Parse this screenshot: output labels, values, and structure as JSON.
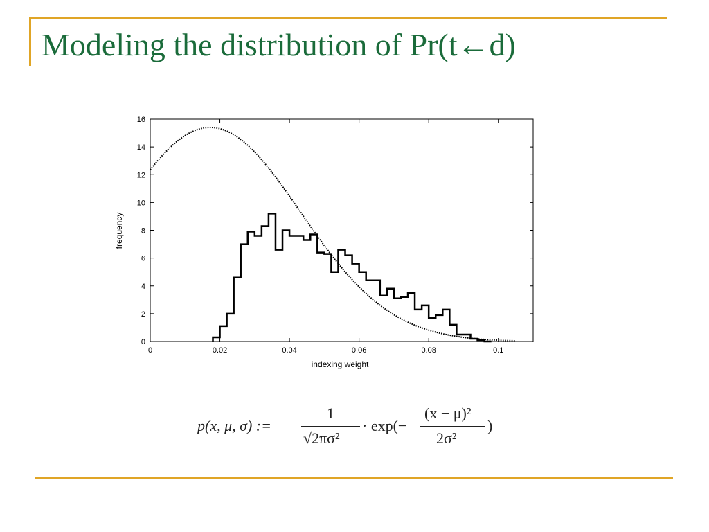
{
  "slide": {
    "title": "Modeling the distribution of  Pr(t←d)",
    "accent_color": "#e0a526",
    "title_color": "#1a6b3a"
  },
  "formula": {
    "lhs": "p(x, μ, σ) :=",
    "frac1_num": "1",
    "frac1_den": "√2πσ²",
    "mid": "· exp(−",
    "frac2_num": "(x − μ)²",
    "frac2_den": "2σ²",
    "close": ")"
  },
  "chart_data": {
    "type": "line",
    "xlabel": "indexing weight",
    "ylabel": "frequency",
    "xlim": [
      0,
      0.11
    ],
    "ylim": [
      0,
      16
    ],
    "x_ticks": [
      {
        "v": 0,
        "label": "0"
      },
      {
        "v": 0.02,
        "label": "0.02"
      },
      {
        "v": 0.04,
        "label": "0.04"
      },
      {
        "v": 0.06,
        "label": "0.06"
      },
      {
        "v": 0.08,
        "label": "0.08"
      },
      {
        "v": 0.1,
        "label": "0.1"
      }
    ],
    "y_ticks": [
      {
        "v": 0,
        "label": "0"
      },
      {
        "v": 2,
        "label": "2"
      },
      {
        "v": 4,
        "label": "4"
      },
      {
        "v": 6,
        "label": "6"
      },
      {
        "v": 8,
        "label": "8"
      },
      {
        "v": 10,
        "label": "10"
      },
      {
        "v": 12,
        "label": "12"
      },
      {
        "v": 14,
        "label": "14"
      },
      {
        "v": 16,
        "label": "16"
      }
    ],
    "grid": false,
    "series": [
      {
        "style": "step",
        "bin_width": 0.002,
        "x": [
          0.018,
          0.02,
          0.022,
          0.024,
          0.026,
          0.028,
          0.03,
          0.032,
          0.034,
          0.036,
          0.038,
          0.04,
          0.042,
          0.044,
          0.046,
          0.048,
          0.05,
          0.052,
          0.054,
          0.056,
          0.058,
          0.06,
          0.062,
          0.064,
          0.066,
          0.068,
          0.07,
          0.072,
          0.074,
          0.076,
          0.078,
          0.08,
          0.082,
          0.084,
          0.086,
          0.088,
          0.09,
          0.092,
          0.094,
          0.096
        ],
        "y": [
          0.3,
          1.1,
          2.0,
          4.6,
          7.0,
          7.9,
          7.6,
          8.3,
          9.2,
          6.6,
          8.0,
          7.6,
          7.6,
          7.3,
          7.7,
          6.4,
          6.3,
          5.0,
          6.6,
          6.2,
          5.6,
          5.0,
          4.4,
          4.4,
          3.3,
          3.8,
          3.1,
          3.2,
          3.5,
          2.3,
          2.6,
          1.7,
          1.9,
          2.3,
          1.2,
          0.5,
          0.5,
          0.2,
          0.1,
          0.0
        ]
      },
      {
        "style": "dotted",
        "distribution": "normal",
        "mu": 0.0172,
        "sigma": 0.0259,
        "x_range": [
          0,
          0.105
        ]
      }
    ]
  }
}
